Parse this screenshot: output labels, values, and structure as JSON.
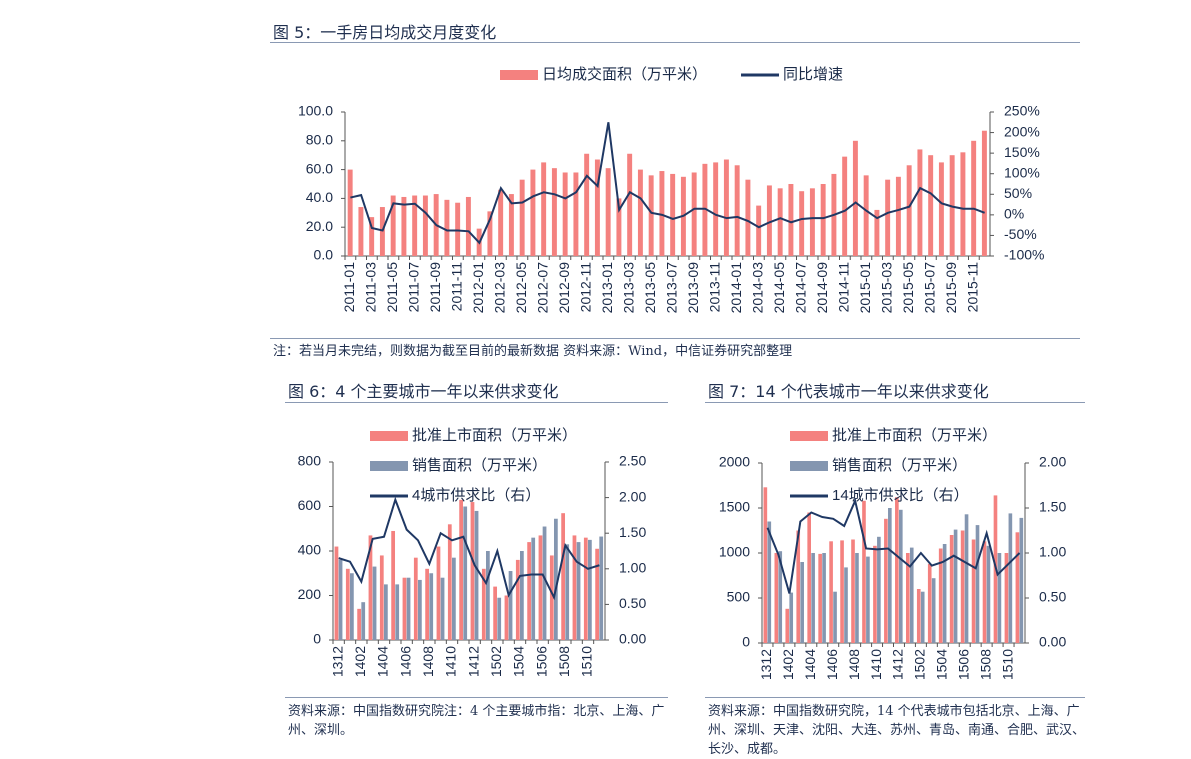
{
  "chart_data": [
    {
      "type": "combo",
      "title": "图 5：一手房日均成交月度变化",
      "note": "注：若当月未完结，则数据为截至目前的最新数据 资料来源：Wind，中信证券研究部整理",
      "categories": [
        "2011-01",
        null,
        "2011-03",
        null,
        "2011-05",
        null,
        "2011-07",
        null,
        "2011-09",
        null,
        "2011-11",
        null,
        "2012-01",
        null,
        "2012-03",
        null,
        "2012-05",
        null,
        "2012-07",
        null,
        "2012-09",
        null,
        "2012-11",
        null,
        "2013-01",
        null,
        "2013-03",
        null,
        "2013-05",
        null,
        "2013-07",
        null,
        "2013-09",
        null,
        "2013-11",
        null,
        "2014-01",
        null,
        "2014-03",
        null,
        "2014-05",
        null,
        "2014-07",
        null,
        "2014-09",
        null,
        "2014-11",
        null,
        "2015-01",
        null,
        "2015-03",
        null,
        "2015-05",
        null,
        "2015-07",
        null,
        "2015-09",
        null,
        "2015-11",
        null
      ],
      "series": [
        {
          "name": "日均成交面积（万平米）",
          "kind": "bar",
          "color": "#f4817f",
          "values": [
            60,
            34,
            27,
            34,
            42,
            41,
            42,
            42,
            43,
            39,
            37,
            41,
            19,
            31,
            46,
            43,
            53,
            60,
            65,
            61,
            58,
            58,
            71,
            67,
            61,
            40,
            71,
            60,
            56,
            59,
            57,
            55,
            58,
            64,
            65,
            67,
            63,
            53,
            35,
            49,
            47,
            50,
            45,
            47,
            50,
            57,
            69,
            80,
            56,
            32,
            53,
            55,
            63,
            74,
            70,
            65,
            70,
            72,
            80,
            87
          ]
        },
        {
          "name": "同比增速",
          "kind": "line",
          "axis": "y2",
          "color": "#1f3864",
          "values": [
            42,
            48,
            -32,
            -38,
            28,
            25,
            27,
            5,
            -25,
            -38,
            -38,
            -40,
            -68,
            -10,
            65,
            28,
            30,
            45,
            55,
            50,
            40,
            55,
            95,
            70,
            225,
            12,
            55,
            40,
            5,
            0,
            -10,
            -2,
            15,
            15,
            0,
            -8,
            -5,
            -15,
            -30,
            -18,
            -8,
            -18,
            -10,
            -8,
            -8,
            0,
            10,
            30,
            10,
            -8,
            5,
            12,
            20,
            65,
            52,
            28,
            20,
            15,
            15,
            5
          ]
        }
      ],
      "ylim": [
        0,
        100
      ],
      "yticks": [
        {
          "value": 0,
          "label": "0.0"
        },
        {
          "value": 20,
          "label": "20.0"
        },
        {
          "value": 40,
          "label": "40.0"
        },
        {
          "value": 60,
          "label": "60.0"
        },
        {
          "value": 80,
          "label": "80.0"
        },
        {
          "value": 100,
          "label": "100.0"
        }
      ],
      "y2lim": [
        -100,
        250
      ],
      "y2ticks": [
        {
          "value": -100,
          "label": "-100%"
        },
        {
          "value": -50,
          "label": "-50%"
        },
        {
          "value": 0,
          "label": "0%"
        },
        {
          "value": 50,
          "label": "50%"
        },
        {
          "value": 100,
          "label": "100%"
        },
        {
          "value": 150,
          "label": "150%"
        },
        {
          "value": 200,
          "label": "200%"
        },
        {
          "value": 250,
          "label": "250%"
        }
      ],
      "legend": "top"
    },
    {
      "type": "combo",
      "title": "图 6：4 个主要城市一年以来供求变化",
      "note": "资料来源：中国指数研究院注：4 个主要城市指：北京、上海、广州、深圳。",
      "categories": [
        "1312",
        null,
        "1402",
        null,
        "1404",
        null,
        "1406",
        null,
        "1408",
        null,
        "1410",
        null,
        "1412",
        null,
        "1502",
        null,
        "1504",
        null,
        "1506",
        null,
        "1508",
        null,
        "1510",
        null
      ],
      "series": [
        {
          "name": "批准上市面积（万平米）",
          "kind": "bar",
          "color": "#f4817f",
          "values": [
            420,
            320,
            140,
            470,
            380,
            490,
            280,
            370,
            320,
            420,
            520,
            630,
            620,
            320,
            240,
            200,
            360,
            440,
            470,
            380,
            570,
            470,
            460,
            410
          ]
        },
        {
          "name": "销售面积（万平米）",
          "kind": "bar",
          "color": "#8496b0",
          "values": [
            360,
            300,
            170,
            330,
            250,
            250,
            280,
            270,
            300,
            280,
            370,
            600,
            580,
            400,
            190,
            310,
            400,
            460,
            510,
            545,
            430,
            440,
            450,
            465
          ]
        },
        {
          "name": "4城市供求比（右）",
          "kind": "line",
          "axis": "y2",
          "color": "#1f3864",
          "values": [
            1.15,
            1.1,
            0.82,
            1.42,
            1.45,
            1.97,
            1.55,
            1.4,
            1.07,
            1.5,
            1.4,
            1.45,
            1.05,
            0.8,
            1.25,
            0.63,
            0.9,
            0.92,
            0.92,
            0.6,
            1.33,
            1.1,
            1.0,
            1.05
          ]
        }
      ],
      "ylim": [
        0,
        800
      ],
      "yticks": [
        0,
        200,
        400,
        600,
        800
      ],
      "y2lim": [
        0,
        2.5
      ],
      "y2ticks": [
        {
          "value": 0,
          "label": "0.00"
        },
        {
          "value": 0.5,
          "label": "0.50"
        },
        {
          "value": 1,
          "label": "1.00"
        },
        {
          "value": 1.5,
          "label": "1.50"
        },
        {
          "value": 2,
          "label": "2.00"
        },
        {
          "value": 2.5,
          "label": "2.50"
        }
      ],
      "legend": "top"
    },
    {
      "type": "combo",
      "title": "图 7：14 个代表城市一年以来供求变化",
      "note": "资料来源：中国指数研究院，14 个代表城市包括北京、上海、广州、深圳、天津、沈阳、大连、苏州、青岛、南通、合肥、武汉、长沙、成都。",
      "categories": [
        "1312",
        null,
        "1402",
        null,
        "1404",
        null,
        "1406",
        null,
        "1408",
        null,
        "1410",
        null,
        "1412",
        null,
        "1502",
        null,
        "1504",
        null,
        "1506",
        null,
        "1508",
        null,
        "1510",
        null
      ],
      "series": [
        {
          "name": "批准上市面积（万平米）",
          "kind": "bar",
          "color": "#f4817f",
          "values": [
            1730,
            1000,
            380,
            1250,
            1450,
            990,
            1130,
            1140,
            1150,
            1580,
            1080,
            1380,
            1620,
            1000,
            600,
            880,
            1050,
            1200,
            1250,
            1150,
            1130,
            1640,
            1000,
            1230
          ]
        },
        {
          "name": "销售面积（万平米）",
          "kind": "bar",
          "color": "#8496b0",
          "values": [
            1350,
            1020,
            560,
            900,
            1000,
            1000,
            570,
            840,
            1000,
            960,
            1180,
            1500,
            1480,
            1060,
            570,
            720,
            1100,
            1260,
            1430,
            1310,
            1080,
            1000,
            1440,
            1390
          ]
        },
        {
          "name": "14城市供求比（右）",
          "kind": "line",
          "axis": "y2",
          "color": "#1f3864",
          "values": [
            1.28,
            0.98,
            0.55,
            1.35,
            1.45,
            1.4,
            1.38,
            1.3,
            1.58,
            1.05,
            1.04,
            1.05,
            0.95,
            0.85,
            1.0,
            0.86,
            0.9,
            0.97,
            0.9,
            0.83,
            1.22,
            0.76,
            0.88,
            1.0
          ]
        }
      ],
      "ylim": [
        0,
        2000
      ],
      "yticks": [
        0,
        500,
        1000,
        1500,
        2000
      ],
      "y2lim": [
        0,
        2
      ],
      "y2ticks": [
        {
          "value": 0,
          "label": "0.00"
        },
        {
          "value": 0.5,
          "label": "0.50"
        },
        {
          "value": 1,
          "label": "1.00"
        },
        {
          "value": 1.5,
          "label": "1.50"
        },
        {
          "value": 2,
          "label": "2.00"
        }
      ],
      "legend": "top"
    }
  ]
}
